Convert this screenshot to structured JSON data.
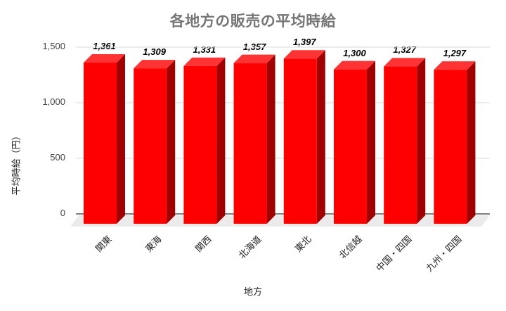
{
  "chart_data": {
    "type": "bar",
    "style": "3d-column",
    "title": "各地方の販売の平均時給",
    "xlabel": "地方",
    "ylabel": "平均時給（円）",
    "categories": [
      "関東",
      "東海",
      "関西",
      "北海道",
      "東北",
      "北信越",
      "中国・四国",
      "九州・四国"
    ],
    "values": [
      1361,
      1309,
      1331,
      1357,
      1397,
      1300,
      1327,
      1297
    ],
    "value_labels": [
      "1,361",
      "1,309",
      "1,331",
      "1,357",
      "1,397",
      "1,300",
      "1,327",
      "1,297"
    ],
    "ylim": [
      0,
      1500
    ],
    "yticks": [
      0,
      500,
      1000,
      1500
    ],
    "ytick_labels": [
      "0",
      "500",
      "1,000",
      "1,500"
    ],
    "grid": true,
    "legend": null,
    "colors": {
      "bar_front": "#ff0000",
      "bar_top": "#ff3333",
      "bar_side": "#a00000",
      "floor": "#ebebeb",
      "grid": "#d9d9d9",
      "axis": "#333333",
      "title": "#757575"
    }
  }
}
